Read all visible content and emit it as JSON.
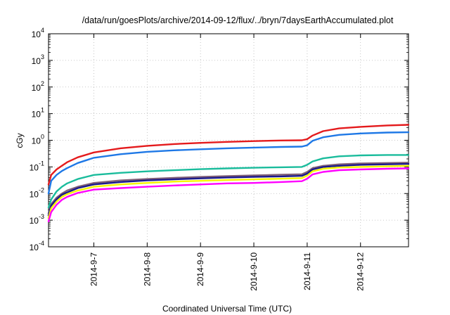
{
  "chart_data": {
    "type": "line",
    "title": "/data/run/goesPlots/archive/2014-09-12/flux/../bryn/7daysEarthAccumulated.plot",
    "xlabel": "Coordinated Universal Time (UTC)",
    "ylabel": "cGy",
    "yscale": "log",
    "ylim": [
      0.0001,
      10000
    ],
    "xlim": [
      -0.85,
      5.9
    ],
    "grid": true,
    "x_ticks": [
      {
        "x": 0,
        "label": "2014-9-7"
      },
      {
        "x": 1,
        "label": "2014-9-8"
      },
      {
        "x": 2,
        "label": "2014-9-9"
      },
      {
        "x": 3,
        "label": "2014-9-10"
      },
      {
        "x": 4,
        "label": "2014-9-11"
      },
      {
        "x": 5,
        "label": "2014-9-12"
      }
    ],
    "y_ticks": [
      {
        "value": 0.0001,
        "base": "10",
        "exp": "-4"
      },
      {
        "value": 0.001,
        "base": "10",
        "exp": "-3"
      },
      {
        "value": 0.01,
        "base": "10",
        "exp": "-2"
      },
      {
        "value": 0.1,
        "base": "10",
        "exp": "-1"
      },
      {
        "value": 1,
        "base": "10",
        "exp": "0"
      },
      {
        "value": 10,
        "base": "10",
        "exp": "1"
      },
      {
        "value": 100,
        "base": "10",
        "exp": "2"
      },
      {
        "value": 1000,
        "base": "10",
        "exp": "3"
      },
      {
        "value": 10000,
        "base": "10",
        "exp": "4"
      }
    ],
    "series": [
      {
        "color": "#e41a1c",
        "x": [
          -0.85,
          -0.8,
          -0.7,
          -0.6,
          -0.5,
          -0.3,
          0,
          0.5,
          1,
          1.5,
          2,
          2.5,
          3,
          3.5,
          3.9,
          4.0,
          4.1,
          4.3,
          4.6,
          5.0,
          5.5,
          5.9
        ],
        "y": [
          0.022,
          0.05,
          0.08,
          0.11,
          0.15,
          0.23,
          0.35,
          0.5,
          0.62,
          0.72,
          0.8,
          0.87,
          0.93,
          0.98,
          1.0,
          1.1,
          1.5,
          2.2,
          2.8,
          3.2,
          3.6,
          3.8
        ]
      },
      {
        "color": "#1e78e6",
        "x": [
          -0.85,
          -0.8,
          -0.7,
          -0.6,
          -0.5,
          -0.3,
          0,
          0.5,
          1,
          1.5,
          2,
          2.5,
          3,
          3.5,
          3.9,
          4.0,
          4.1,
          4.3,
          4.6,
          5.0,
          5.5,
          5.9
        ],
        "y": [
          0.01,
          0.03,
          0.05,
          0.07,
          0.09,
          0.14,
          0.22,
          0.3,
          0.37,
          0.42,
          0.46,
          0.5,
          0.53,
          0.56,
          0.58,
          0.65,
          0.95,
          1.3,
          1.6,
          1.8,
          1.95,
          2.0
        ]
      },
      {
        "color": "#1abc9c",
        "x": [
          -0.85,
          -0.8,
          -0.7,
          -0.6,
          -0.5,
          -0.3,
          0,
          0.5,
          1,
          1.5,
          2,
          2.5,
          3,
          3.5,
          3.9,
          4.0,
          4.1,
          4.3,
          4.6,
          5.0,
          5.5,
          5.9
        ],
        "y": [
          0.003,
          0.006,
          0.012,
          0.018,
          0.024,
          0.035,
          0.05,
          0.06,
          0.068,
          0.075,
          0.082,
          0.088,
          0.093,
          0.097,
          0.1,
          0.12,
          0.16,
          0.21,
          0.25,
          0.27,
          0.28,
          0.28
        ]
      },
      {
        "color": "#7f5f78",
        "x": [
          -0.85,
          -0.8,
          -0.7,
          -0.6,
          -0.5,
          -0.3,
          0,
          0.5,
          1,
          1.5,
          2,
          2.5,
          3,
          3.5,
          3.9,
          4.0,
          4.1,
          4.3,
          4.6,
          5.0,
          5.5,
          5.9
        ],
        "y": [
          0.0018,
          0.004,
          0.007,
          0.01,
          0.013,
          0.018,
          0.025,
          0.031,
          0.035,
          0.039,
          0.042,
          0.045,
          0.048,
          0.051,
          0.053,
          0.065,
          0.09,
          0.11,
          0.125,
          0.135,
          0.14,
          0.145
        ]
      },
      {
        "color": "#1a1a8c",
        "x": [
          -0.85,
          -0.8,
          -0.7,
          -0.6,
          -0.5,
          -0.3,
          0,
          0.5,
          1,
          1.5,
          2,
          2.5,
          3,
          3.5,
          3.9,
          4.0,
          4.1,
          4.3,
          4.6,
          5.0,
          5.5,
          5.9
        ],
        "y": [
          0.0015,
          0.0035,
          0.006,
          0.009,
          0.011,
          0.016,
          0.022,
          0.027,
          0.031,
          0.034,
          0.037,
          0.04,
          0.042,
          0.044,
          0.046,
          0.056,
          0.08,
          0.1,
          0.11,
          0.12,
          0.125,
          0.13
        ]
      },
      {
        "color": "#f5f500",
        "x": [
          -0.85,
          -0.8,
          -0.7,
          -0.6,
          -0.5,
          -0.3,
          0,
          0.5,
          1,
          1.5,
          2,
          2.5,
          3,
          3.5,
          3.9,
          4.0,
          4.1,
          4.3,
          4.6,
          5.0,
          5.5,
          5.9
        ],
        "y": [
          0.0012,
          0.0028,
          0.005,
          0.0075,
          0.0095,
          0.013,
          0.018,
          0.022,
          0.025,
          0.028,
          0.03,
          0.032,
          0.034,
          0.036,
          0.038,
          0.047,
          0.068,
          0.085,
          0.095,
          0.1,
          0.105,
          0.11
        ]
      },
      {
        "color": "#ff00ff",
        "x": [
          -0.85,
          -0.8,
          -0.7,
          -0.6,
          -0.5,
          -0.3,
          0,
          0.5,
          1,
          1.5,
          2,
          2.5,
          3,
          3.5,
          3.9,
          4.0,
          4.1,
          4.3,
          4.6,
          5.0,
          5.5,
          5.9
        ],
        "y": [
          0.0009,
          0.002,
          0.0038,
          0.0058,
          0.0075,
          0.0105,
          0.014,
          0.016,
          0.018,
          0.02,
          0.022,
          0.024,
          0.025,
          0.027,
          0.029,
          0.036,
          0.052,
          0.065,
          0.075,
          0.08,
          0.085,
          0.088
        ]
      }
    ]
  }
}
